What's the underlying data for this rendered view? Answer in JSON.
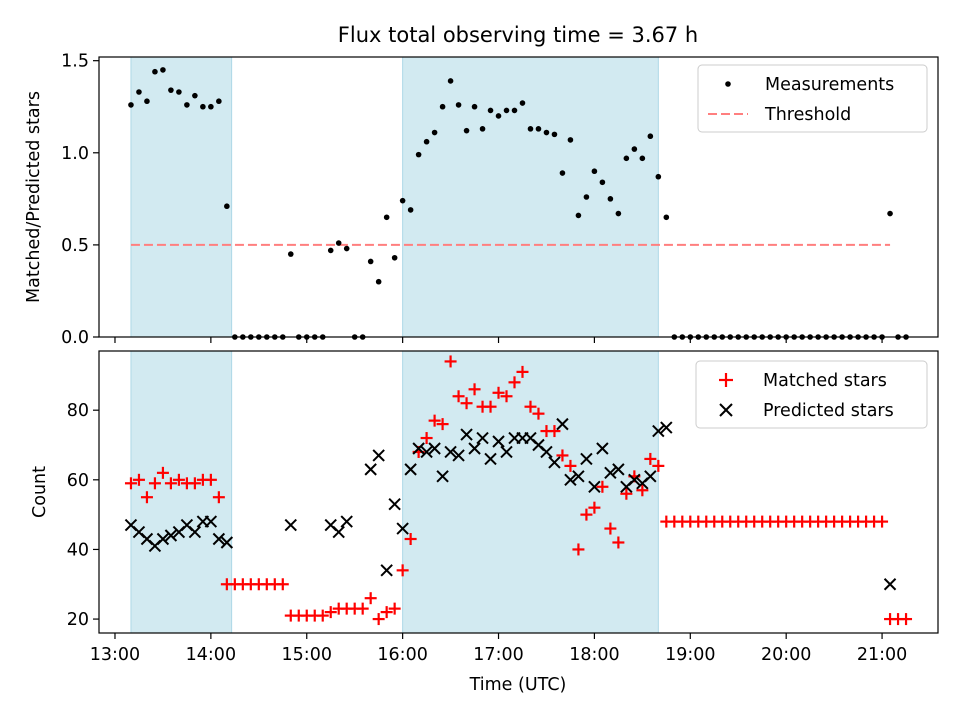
{
  "title": "Flux total observing time = 3.67 h",
  "xlabel": "Time (UTC)",
  "x_tick_labels": [
    "13:00",
    "14:00",
    "15:00",
    "16:00",
    "17:00",
    "18:00",
    "19:00",
    "20:00",
    "21:00"
  ],
  "colors": {
    "shade": "#add8e6",
    "measurements": "#000000",
    "threshold": "#ff7f7f",
    "matched": "#ff0000",
    "predicted": "#000000"
  },
  "chart_data": [
    {
      "type": "scatter",
      "panel": "top",
      "ylabel": "Matched/Predicted stars",
      "xlim": [
        "12:50",
        "21:35"
      ],
      "ylim": [
        0,
        1.52
      ],
      "y_ticks": [
        "0.0",
        "0.5",
        "1.0",
        "1.5"
      ],
      "shaded_intervals": [
        [
          "13:10",
          "14:13"
        ],
        [
          "16:00",
          "18:40"
        ]
      ],
      "legend": {
        "placement": "top-right",
        "entries": [
          "Measurements",
          "Threshold"
        ]
      },
      "threshold": {
        "name": "Threshold",
        "value": 0.5,
        "x_range": [
          "13:10",
          "21:05"
        ],
        "style": "dashed"
      },
      "series": [
        {
          "name": "Measurements",
          "points": [
            [
              "13:10",
              1.26
            ],
            [
              "13:15",
              1.33
            ],
            [
              "13:20",
              1.28
            ],
            [
              "13:25",
              1.44
            ],
            [
              "13:30",
              1.45
            ],
            [
              "13:35",
              1.34
            ],
            [
              "13:40",
              1.33
            ],
            [
              "13:45",
              1.26
            ],
            [
              "13:50",
              1.31
            ],
            [
              "13:55",
              1.25
            ],
            [
              "14:00",
              1.25
            ],
            [
              "14:05",
              1.28
            ],
            [
              "14:10",
              0.71
            ],
            [
              "14:15",
              0.0
            ],
            [
              "14:20",
              0.0
            ],
            [
              "14:25",
              0.0
            ],
            [
              "14:30",
              0.0
            ],
            [
              "14:35",
              0.0
            ],
            [
              "14:40",
              0.0
            ],
            [
              "14:45",
              0.0
            ],
            [
              "14:50",
              0.45
            ],
            [
              "14:55",
              0.0
            ],
            [
              "15:00",
              0.0
            ],
            [
              "15:05",
              0.0
            ],
            [
              "15:10",
              0.0
            ],
            [
              "15:15",
              0.47
            ],
            [
              "15:20",
              0.51
            ],
            [
              "15:25",
              0.48
            ],
            [
              "15:30",
              0.0
            ],
            [
              "15:35",
              0.0
            ],
            [
              "15:40",
              0.41
            ],
            [
              "15:45",
              0.3
            ],
            [
              "15:50",
              0.65
            ],
            [
              "15:55",
              0.43
            ],
            [
              "16:00",
              0.74
            ],
            [
              "16:05",
              0.69
            ],
            [
              "16:10",
              0.99
            ],
            [
              "16:15",
              1.06
            ],
            [
              "16:20",
              1.11
            ],
            [
              "16:25",
              1.25
            ],
            [
              "16:30",
              1.39
            ],
            [
              "16:35",
              1.26
            ],
            [
              "16:40",
              1.12
            ],
            [
              "16:45",
              1.25
            ],
            [
              "16:50",
              1.13
            ],
            [
              "16:55",
              1.23
            ],
            [
              "17:00",
              1.2
            ],
            [
              "17:05",
              1.23
            ],
            [
              "17:10",
              1.23
            ],
            [
              "17:15",
              1.27
            ],
            [
              "17:20",
              1.13
            ],
            [
              "17:25",
              1.13
            ],
            [
              "17:30",
              1.11
            ],
            [
              "17:35",
              1.1
            ],
            [
              "17:40",
              0.89
            ],
            [
              "17:45",
              1.07
            ],
            [
              "17:50",
              0.66
            ],
            [
              "17:55",
              0.76
            ],
            [
              "18:00",
              0.9
            ],
            [
              "18:05",
              0.84
            ],
            [
              "18:10",
              0.75
            ],
            [
              "18:15",
              0.67
            ],
            [
              "18:20",
              0.97
            ],
            [
              "18:25",
              1.02
            ],
            [
              "18:30",
              0.97
            ],
            [
              "18:35",
              1.09
            ],
            [
              "18:40",
              0.87
            ],
            [
              "18:45",
              0.65
            ],
            [
              "18:50",
              0.0
            ],
            [
              "18:55",
              0.0
            ],
            [
              "19:00",
              0.0
            ],
            [
              "19:05",
              0.0
            ],
            [
              "19:10",
              0.0
            ],
            [
              "19:15",
              0.0
            ],
            [
              "19:20",
              0.0
            ],
            [
              "19:25",
              0.0
            ],
            [
              "19:30",
              0.0
            ],
            [
              "19:35",
              0.0
            ],
            [
              "19:40",
              0.0
            ],
            [
              "19:45",
              0.0
            ],
            [
              "19:50",
              0.0
            ],
            [
              "19:55",
              0.0
            ],
            [
              "20:00",
              0.0
            ],
            [
              "20:05",
              0.0
            ],
            [
              "20:10",
              0.0
            ],
            [
              "20:15",
              0.0
            ],
            [
              "20:20",
              0.0
            ],
            [
              "20:25",
              0.0
            ],
            [
              "20:30",
              0.0
            ],
            [
              "20:35",
              0.0
            ],
            [
              "20:40",
              0.0
            ],
            [
              "20:45",
              0.0
            ],
            [
              "20:50",
              0.0
            ],
            [
              "20:55",
              0.0
            ],
            [
              "21:00",
              0.0
            ],
            [
              "21:05",
              0.67
            ],
            [
              "21:10",
              0.0
            ],
            [
              "21:15",
              0.0
            ]
          ]
        }
      ]
    },
    {
      "type": "scatter",
      "panel": "bottom",
      "ylabel": "Count",
      "xlim": [
        "12:50",
        "21:35"
      ],
      "ylim": [
        16,
        97
      ],
      "y_ticks": [
        "20",
        "40",
        "60",
        "80"
      ],
      "shaded_intervals": [
        [
          "13:10",
          "14:13"
        ],
        [
          "16:00",
          "18:40"
        ]
      ],
      "legend": {
        "placement": "top-right",
        "entries": [
          "Matched stars",
          "Predicted stars"
        ]
      },
      "series": [
        {
          "name": "Matched stars",
          "marker": "plus",
          "points": [
            [
              "13:10",
              59
            ],
            [
              "13:15",
              60
            ],
            [
              "13:20",
              55
            ],
            [
              "13:25",
              59
            ],
            [
              "13:30",
              62
            ],
            [
              "13:35",
              59
            ],
            [
              "13:40",
              60
            ],
            [
              "13:45",
              59
            ],
            [
              "13:50",
              59
            ],
            [
              "13:55",
              60
            ],
            [
              "14:00",
              60
            ],
            [
              "14:05",
              55
            ],
            [
              "14:10",
              30
            ],
            [
              "14:15",
              30
            ],
            [
              "14:20",
              30
            ],
            [
              "14:25",
              30
            ],
            [
              "14:30",
              30
            ],
            [
              "14:35",
              30
            ],
            [
              "14:40",
              30
            ],
            [
              "14:45",
              30
            ],
            [
              "14:50",
              21
            ],
            [
              "14:55",
              21
            ],
            [
              "15:00",
              21
            ],
            [
              "15:05",
              21
            ],
            [
              "15:10",
              21
            ],
            [
              "15:15",
              22
            ],
            [
              "15:20",
              23
            ],
            [
              "15:25",
              23
            ],
            [
              "15:30",
              23
            ],
            [
              "15:35",
              23
            ],
            [
              "15:40",
              26
            ],
            [
              "15:45",
              20
            ],
            [
              "15:50",
              22
            ],
            [
              "15:55",
              23
            ],
            [
              "16:00",
              34
            ],
            [
              "16:05",
              43
            ],
            [
              "16:10",
              68
            ],
            [
              "16:15",
              72
            ],
            [
              "16:20",
              77
            ],
            [
              "16:25",
              76
            ],
            [
              "16:30",
              94
            ],
            [
              "16:35",
              84
            ],
            [
              "16:40",
              82
            ],
            [
              "16:45",
              86
            ],
            [
              "16:50",
              81
            ],
            [
              "16:55",
              81
            ],
            [
              "17:00",
              85
            ],
            [
              "17:05",
              84
            ],
            [
              "17:10",
              88
            ],
            [
              "17:15",
              91
            ],
            [
              "17:20",
              81
            ],
            [
              "17:25",
              79
            ],
            [
              "17:30",
              74
            ],
            [
              "17:35",
              74
            ],
            [
              "17:40",
              67
            ],
            [
              "17:45",
              64
            ],
            [
              "17:50",
              40
            ],
            [
              "17:55",
              50
            ],
            [
              "18:00",
              52
            ],
            [
              "18:05",
              58
            ],
            [
              "18:10",
              46
            ],
            [
              "18:15",
              42
            ],
            [
              "18:20",
              56
            ],
            [
              "18:25",
              61
            ],
            [
              "18:30",
              57
            ],
            [
              "18:35",
              66
            ],
            [
              "18:40",
              64
            ],
            [
              "18:45",
              48
            ],
            [
              "18:50",
              48
            ],
            [
              "18:55",
              48
            ],
            [
              "19:00",
              48
            ],
            [
              "19:05",
              48
            ],
            [
              "19:10",
              48
            ],
            [
              "19:15",
              48
            ],
            [
              "19:20",
              48
            ],
            [
              "19:25",
              48
            ],
            [
              "19:30",
              48
            ],
            [
              "19:35",
              48
            ],
            [
              "19:40",
              48
            ],
            [
              "19:45",
              48
            ],
            [
              "19:50",
              48
            ],
            [
              "19:55",
              48
            ],
            [
              "20:00",
              48
            ],
            [
              "20:05",
              48
            ],
            [
              "20:10",
              48
            ],
            [
              "20:15",
              48
            ],
            [
              "20:20",
              48
            ],
            [
              "20:25",
              48
            ],
            [
              "20:30",
              48
            ],
            [
              "20:35",
              48
            ],
            [
              "20:40",
              48
            ],
            [
              "20:45",
              48
            ],
            [
              "20:50",
              48
            ],
            [
              "20:55",
              48
            ],
            [
              "21:00",
              48
            ],
            [
              "21:05",
              20
            ],
            [
              "21:10",
              20
            ],
            [
              "21:15",
              20
            ]
          ]
        },
        {
          "name": "Predicted stars",
          "marker": "x",
          "points": [
            [
              "13:10",
              47
            ],
            [
              "13:15",
              45
            ],
            [
              "13:20",
              43
            ],
            [
              "13:25",
              41
            ],
            [
              "13:30",
              43
            ],
            [
              "13:35",
              44
            ],
            [
              "13:40",
              45
            ],
            [
              "13:45",
              47
            ],
            [
              "13:50",
              45
            ],
            [
              "13:55",
              48
            ],
            [
              "14:00",
              48
            ],
            [
              "14:05",
              43
            ],
            [
              "14:10",
              42
            ],
            [
              "14:50",
              47
            ],
            [
              "15:15",
              47
            ],
            [
              "15:20",
              45
            ],
            [
              "15:25",
              48
            ],
            [
              "15:40",
              63
            ],
            [
              "15:45",
              67
            ],
            [
              "15:50",
              34
            ],
            [
              "15:55",
              53
            ],
            [
              "16:00",
              46
            ],
            [
              "16:05",
              63
            ],
            [
              "16:10",
              69
            ],
            [
              "16:15",
              68
            ],
            [
              "16:20",
              69
            ],
            [
              "16:25",
              61
            ],
            [
              "16:30",
              68
            ],
            [
              "16:35",
              67
            ],
            [
              "16:40",
              73
            ],
            [
              "16:45",
              69
            ],
            [
              "16:50",
              72
            ],
            [
              "16:55",
              66
            ],
            [
              "17:00",
              71
            ],
            [
              "17:05",
              68
            ],
            [
              "17:10",
              72
            ],
            [
              "17:15",
              72
            ],
            [
              "17:20",
              72
            ],
            [
              "17:25",
              70
            ],
            [
              "17:30",
              68
            ],
            [
              "17:35",
              65
            ],
            [
              "17:40",
              76
            ],
            [
              "17:45",
              60
            ],
            [
              "17:50",
              61
            ],
            [
              "17:55",
              66
            ],
            [
              "18:00",
              58
            ],
            [
              "18:05",
              69
            ],
            [
              "18:10",
              62
            ],
            [
              "18:15",
              63
            ],
            [
              "18:20",
              58
            ],
            [
              "18:25",
              60
            ],
            [
              "18:30",
              59
            ],
            [
              "18:35",
              61
            ],
            [
              "18:40",
              74
            ],
            [
              "18:45",
              75
            ],
            [
              "21:05",
              30
            ]
          ]
        }
      ]
    }
  ]
}
